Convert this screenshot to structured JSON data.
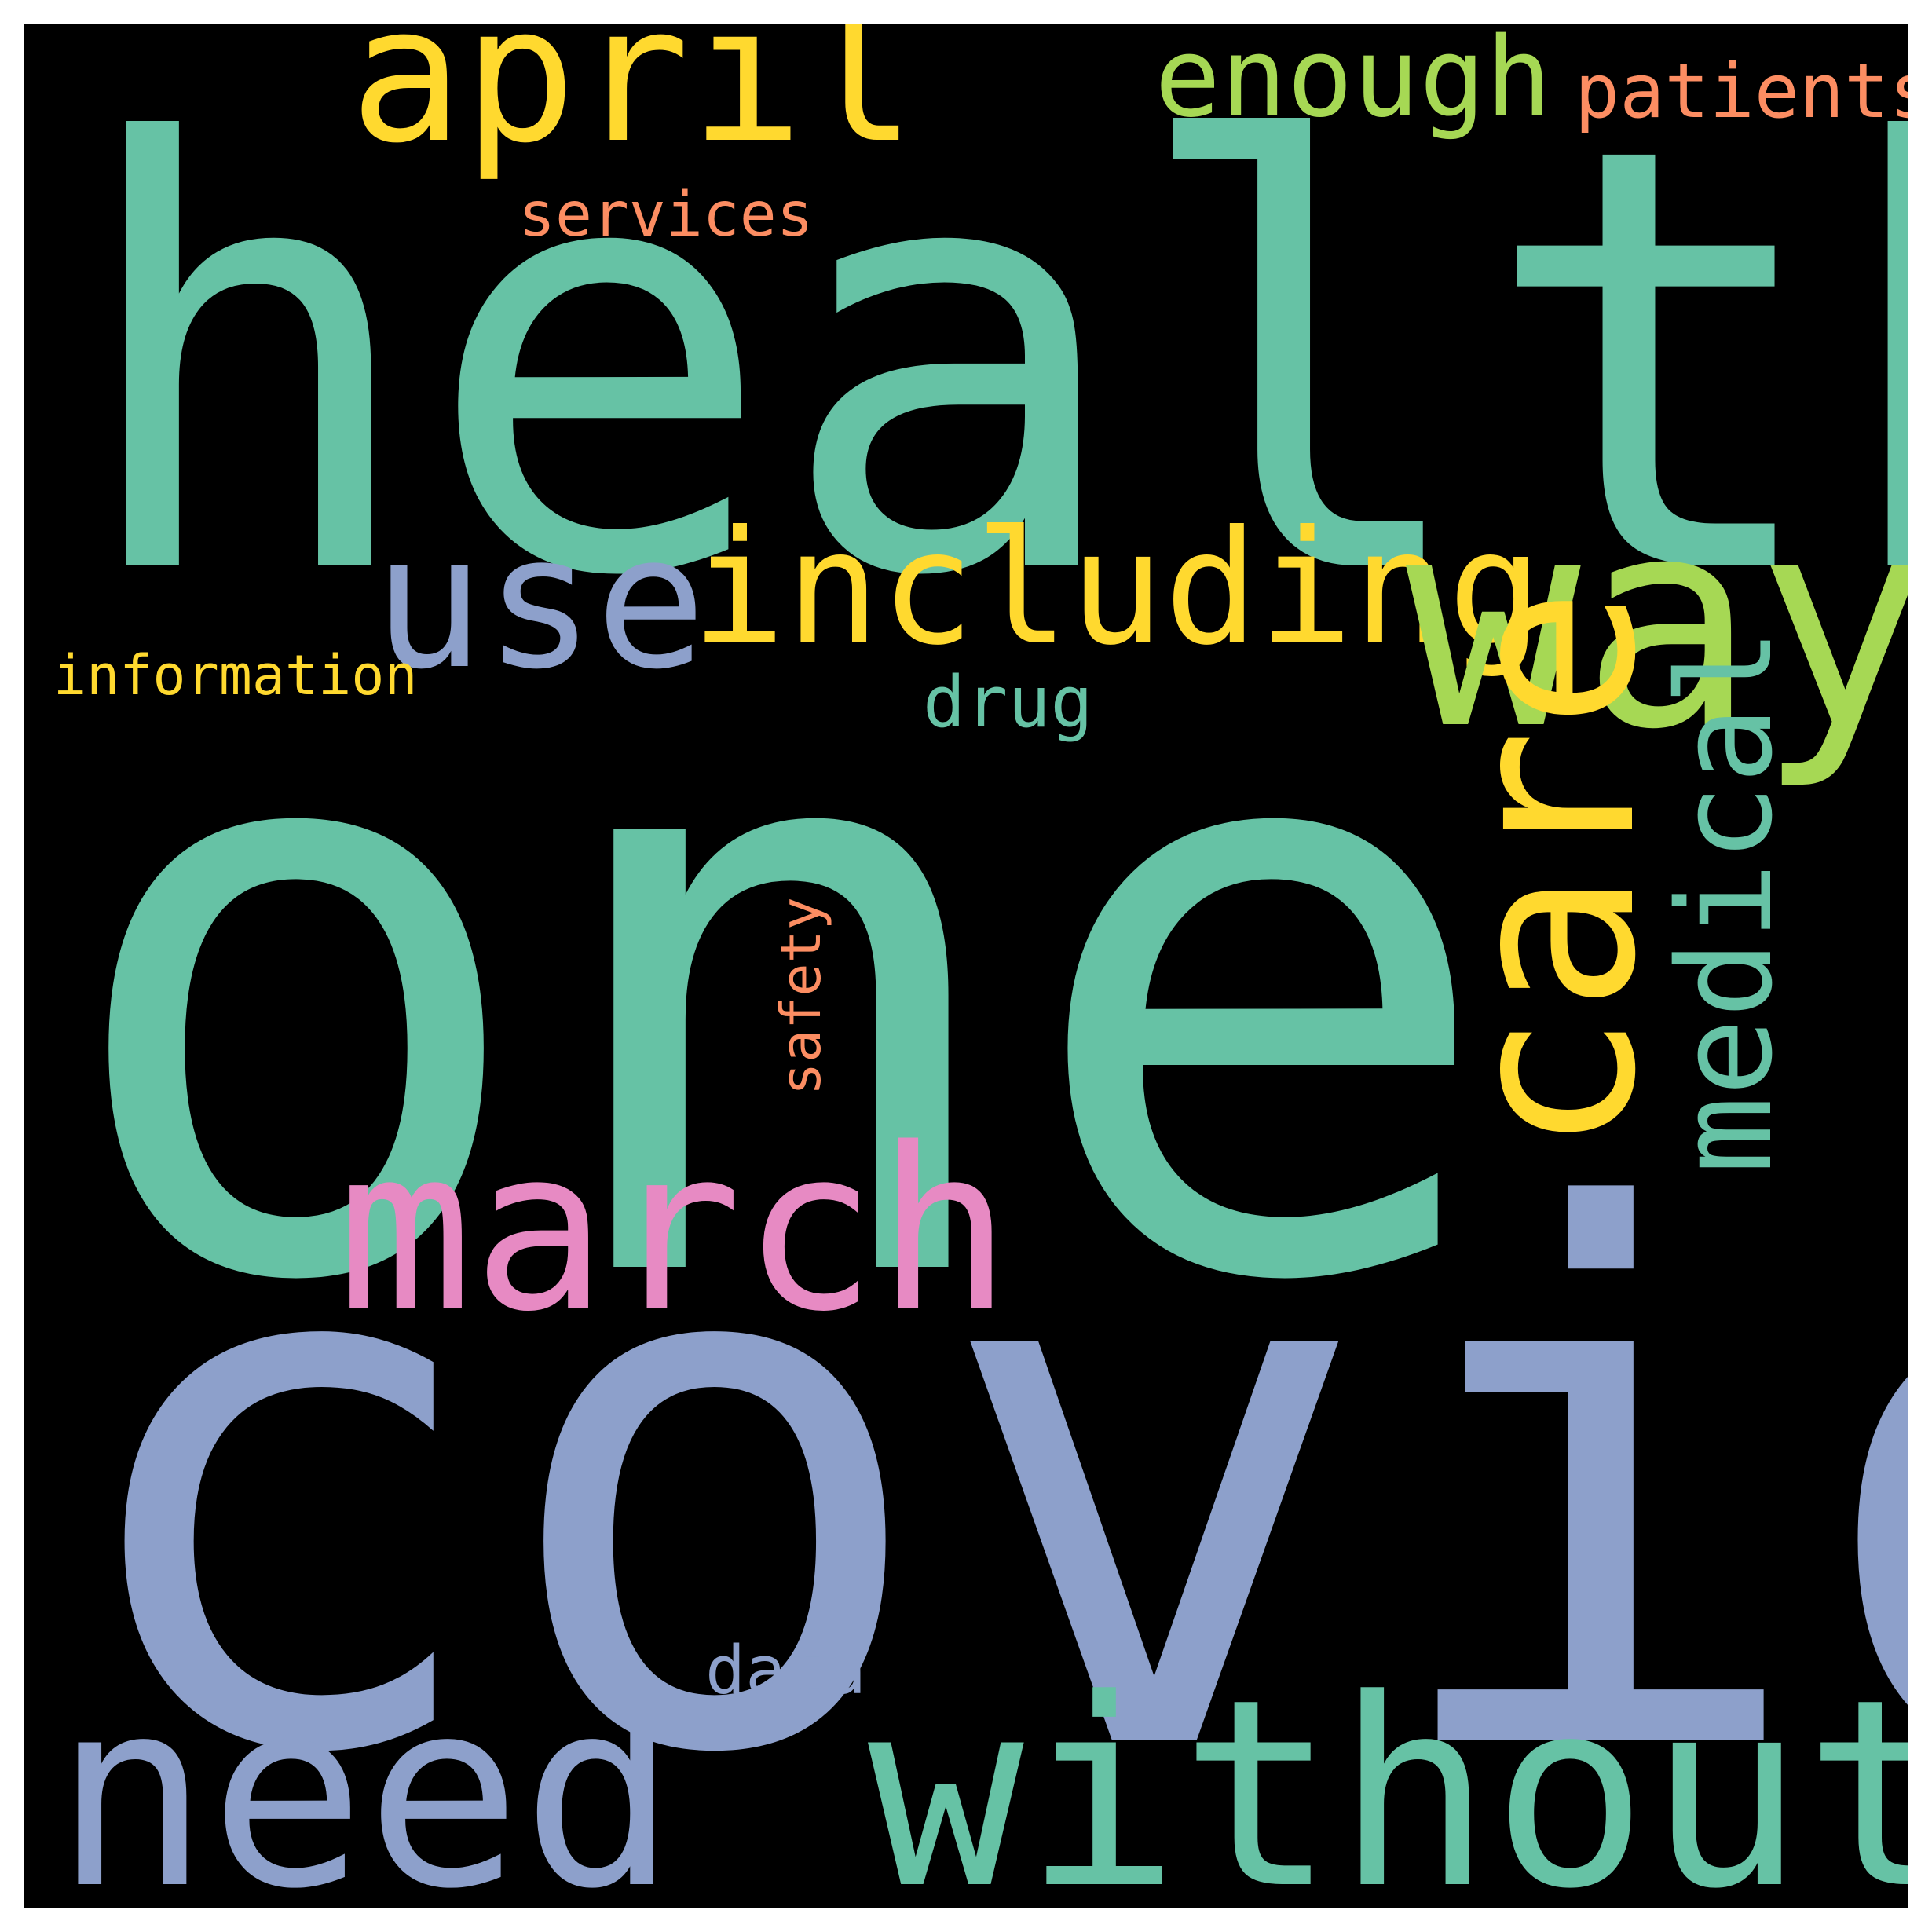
{
  "word_cloud": {
    "background": "#000000",
    "words": {
      "health": {
        "text": "health",
        "color": "#66c2a5"
      },
      "one": {
        "text": "one",
        "color": "#66c2a5"
      },
      "covid": {
        "text": "covid",
        "color": "#8da0cb"
      },
      "april": {
        "text": "april",
        "color": "#ffd92f"
      },
      "enough": {
        "text": "enough",
        "color": "#a6d854"
      },
      "patients": {
        "text": "patients",
        "color": "#fc8d62"
      },
      "services": {
        "text": "services",
        "color": "#fc8d62"
      },
      "use": {
        "text": "use",
        "color": "#8da0cb"
      },
      "including": {
        "text": "including",
        "color": "#ffd92f"
      },
      "way": {
        "text": "way",
        "color": "#a6d854"
      },
      "information": {
        "text": "information",
        "color": "#ffd92f"
      },
      "drug": {
        "text": "drug",
        "color": "#66c2a5"
      },
      "care": {
        "text": "care",
        "color": "#ffd92f"
      },
      "medical": {
        "text": "medical",
        "color": "#66c2a5"
      },
      "safety": {
        "text": "safety",
        "color": "#fc8d62"
      },
      "march": {
        "text": "march",
        "color": "#e78ac3"
      },
      "data": {
        "text": "data",
        "color": "#8da0cb"
      },
      "need": {
        "text": "need",
        "color": "#8da0cb"
      },
      "without": {
        "text": "without",
        "color": "#66c2a5"
      }
    }
  }
}
